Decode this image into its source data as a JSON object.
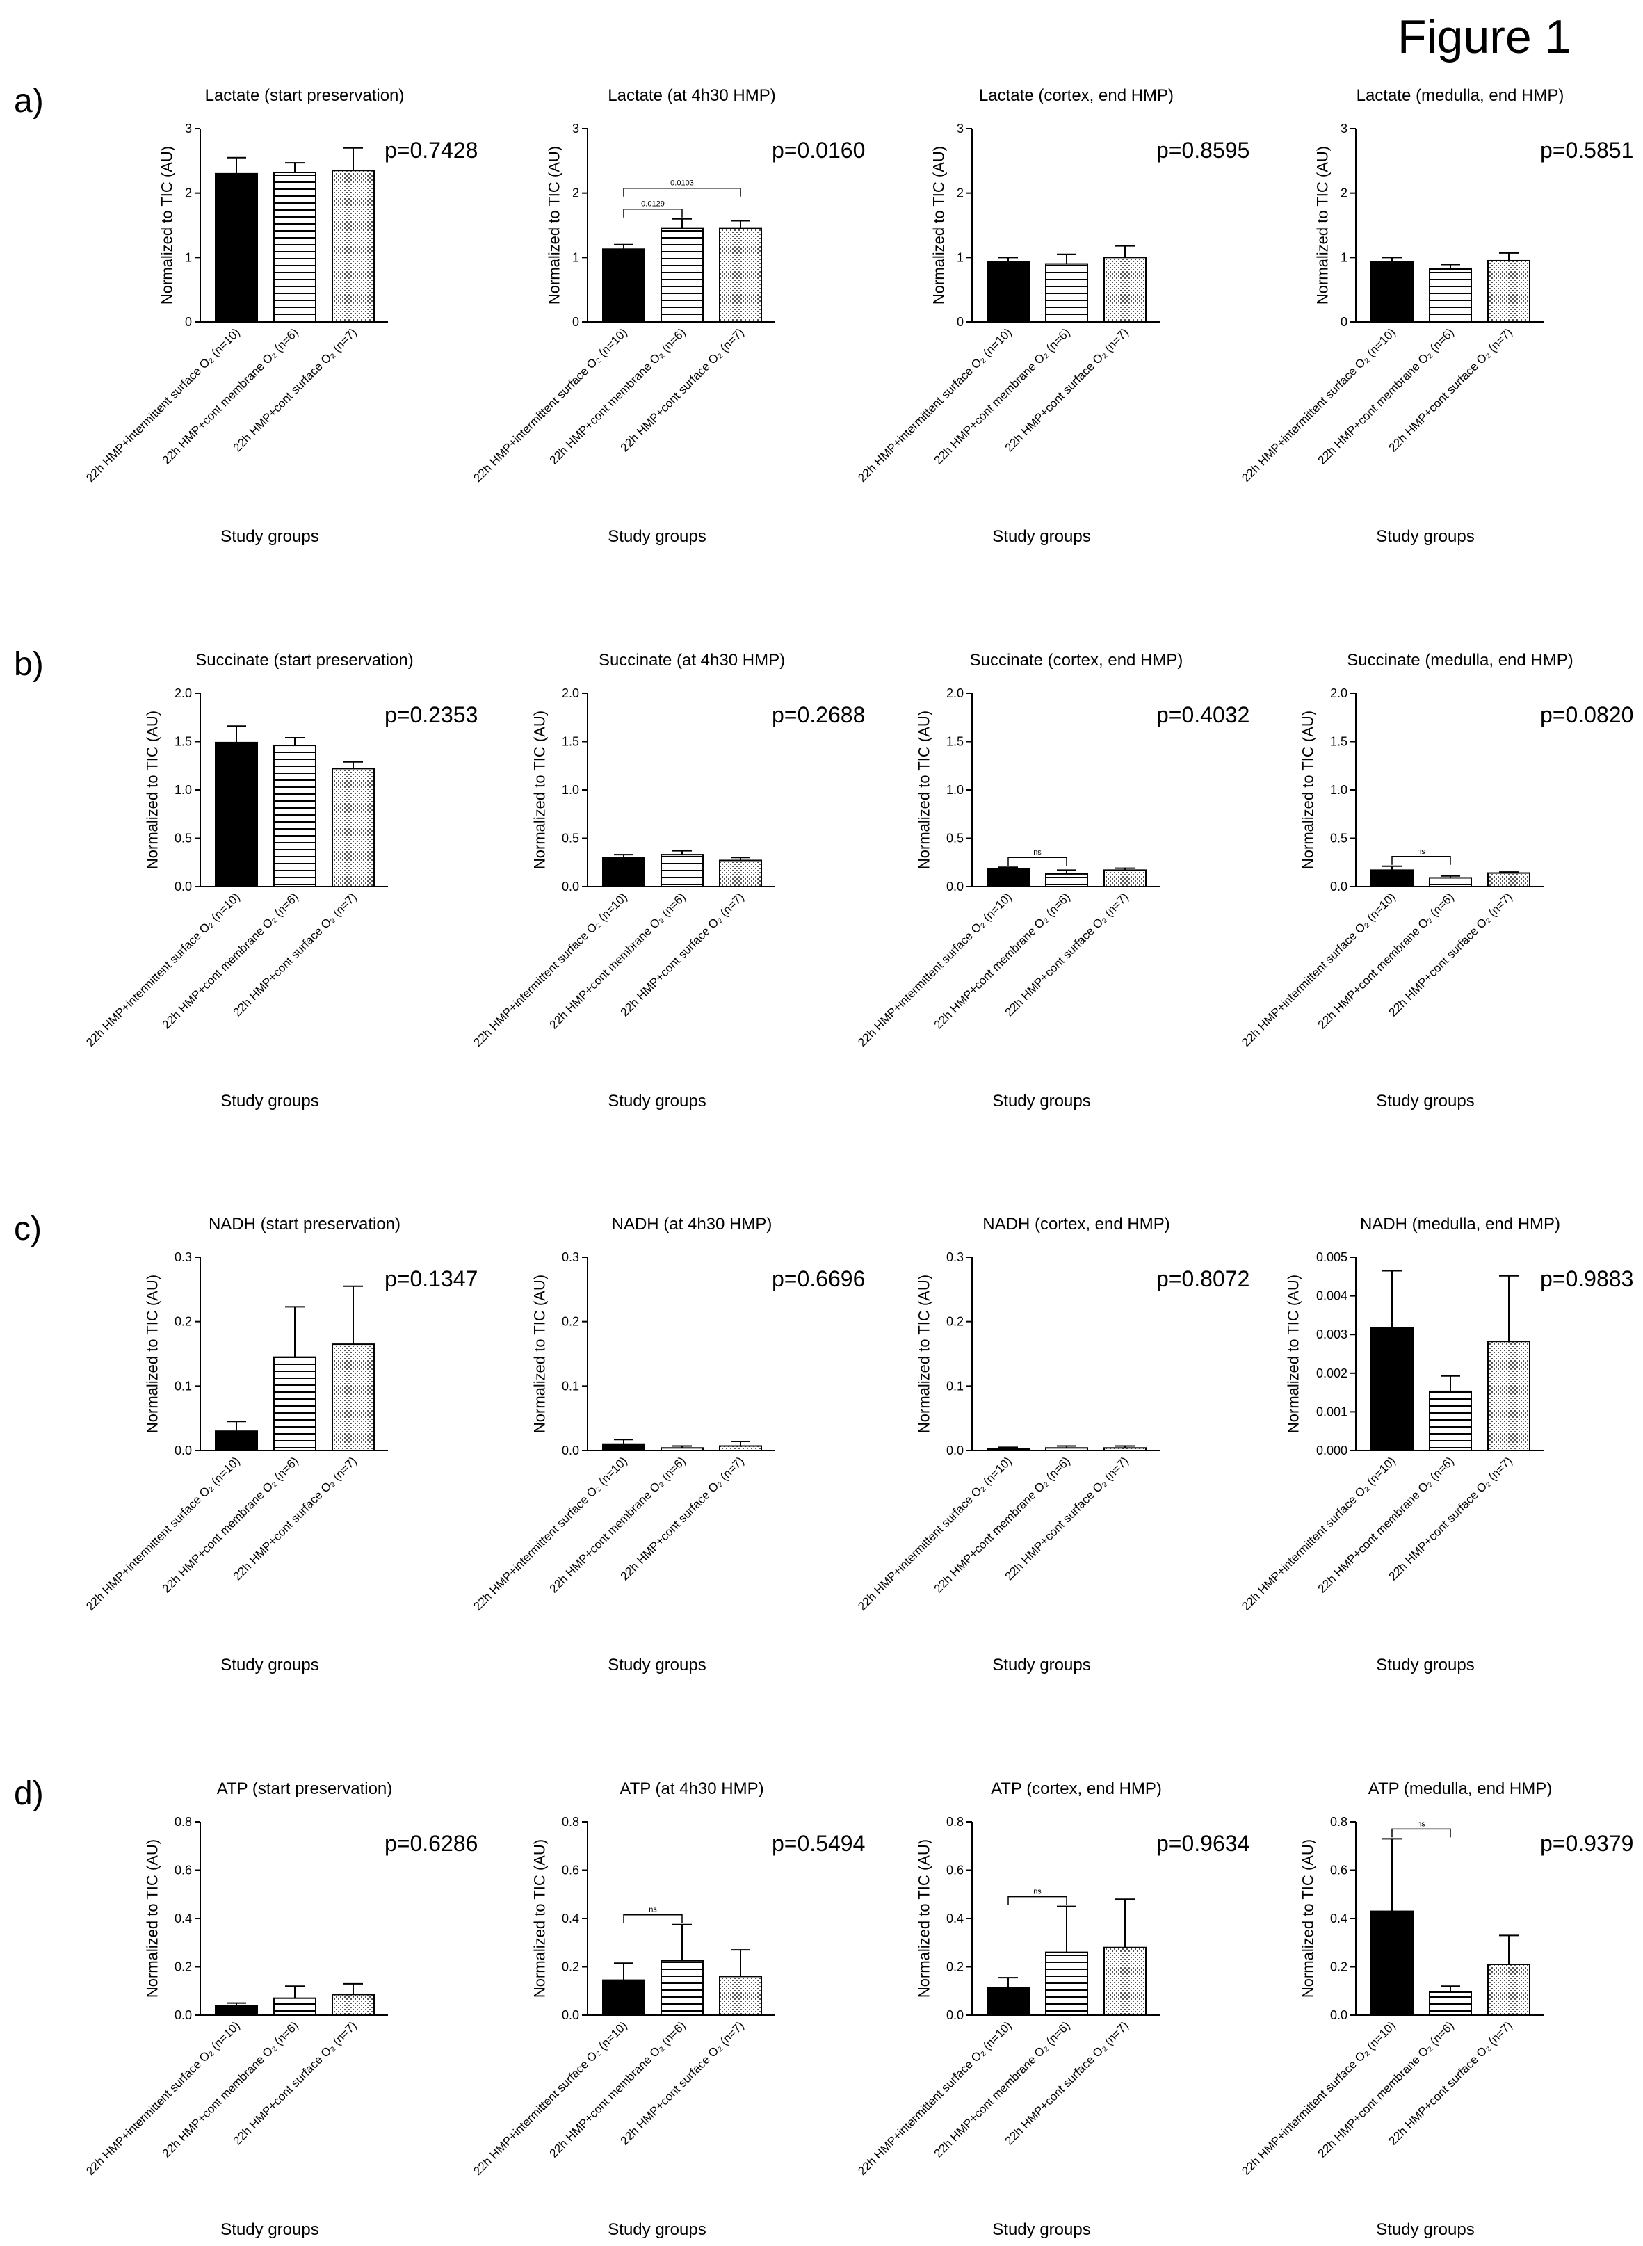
{
  "figure": {
    "title": "Figure 1"
  },
  "rows": [
    {
      "label": "a)"
    },
    {
      "label": "b)"
    },
    {
      "label": "c)"
    },
    {
      "label": "d)"
    }
  ],
  "shared": {
    "ylabel": "Normalized to TIC (AU)",
    "xlabel": "Study groups",
    "categories": [
      "22h HMP+intermittent surface O₂ (n=10)",
      "22h HMP+cont membrane O₂ (n=6)",
      "22h HMP+cont surface O₂ (n=7)"
    ],
    "bar_fills": [
      "solid-black",
      "horizontal-lines",
      "fine-dots"
    ]
  },
  "chart_data": [
    {
      "type": "bar",
      "title": "Lactate (start preservation)",
      "pvalue": "p=0.7428",
      "ylim": [
        0,
        3
      ],
      "yticks": [
        "0",
        "1",
        "2",
        "3"
      ],
      "values": [
        2.3,
        2.32,
        2.35
      ],
      "errors": [
        0.25,
        0.15,
        0.35
      ],
      "brackets": []
    },
    {
      "type": "bar",
      "title": "Lactate (at 4h30 HMP)",
      "pvalue": "p=0.0160",
      "ylim": [
        0,
        3
      ],
      "yticks": [
        "0",
        "1",
        "2",
        "3"
      ],
      "values": [
        1.13,
        1.45,
        1.45
      ],
      "errors": [
        0.07,
        0.15,
        0.12
      ],
      "brackets": [
        {
          "from": 0,
          "to": 1,
          "label": "0.0129"
        },
        {
          "from": 0,
          "to": 2,
          "label": "0.0103"
        }
      ]
    },
    {
      "type": "bar",
      "title": "Lactate (cortex, end HMP)",
      "pvalue": "p=0.8595",
      "ylim": [
        0,
        3
      ],
      "yticks": [
        "0",
        "1",
        "2",
        "3"
      ],
      "values": [
        0.93,
        0.9,
        1.0
      ],
      "errors": [
        0.07,
        0.15,
        0.18
      ],
      "brackets": []
    },
    {
      "type": "bar",
      "title": "Lactate (medulla, end HMP)",
      "pvalue": "p=0.5851",
      "ylim": [
        0,
        3
      ],
      "yticks": [
        "0",
        "1",
        "2",
        "3"
      ],
      "values": [
        0.93,
        0.82,
        0.95
      ],
      "errors": [
        0.07,
        0.07,
        0.12
      ],
      "brackets": []
    },
    {
      "type": "bar",
      "title": "Succinate (start preservation)",
      "pvalue": "p=0.2353",
      "ylim": [
        0,
        2
      ],
      "yticks": [
        "0.0",
        "0.5",
        "1.0",
        "1.5",
        "2.0"
      ],
      "values": [
        1.49,
        1.46,
        1.22
      ],
      "errors": [
        0.17,
        0.08,
        0.07
      ],
      "brackets": []
    },
    {
      "type": "bar",
      "title": "Succinate (at 4h30 HMP)",
      "pvalue": "p=0.2688",
      "ylim": [
        0,
        2
      ],
      "yticks": [
        "0.0",
        "0.5",
        "1.0",
        "1.5",
        "2.0"
      ],
      "values": [
        0.3,
        0.33,
        0.27
      ],
      "errors": [
        0.03,
        0.04,
        0.03
      ],
      "brackets": []
    },
    {
      "type": "bar",
      "title": "Succinate (cortex, end HMP)",
      "pvalue": "p=0.4032",
      "ylim": [
        0,
        2
      ],
      "yticks": [
        "0.0",
        "0.5",
        "1.0",
        "1.5",
        "2.0"
      ],
      "values": [
        0.18,
        0.13,
        0.17
      ],
      "errors": [
        0.02,
        0.04,
        0.02
      ],
      "brackets": [
        {
          "from": 0,
          "to": 1,
          "label": "ns"
        }
      ]
    },
    {
      "type": "bar",
      "title": "Succinate (medulla, end HMP)",
      "pvalue": "p=0.0820",
      "ylim": [
        0,
        2
      ],
      "yticks": [
        "0.0",
        "0.5",
        "1.0",
        "1.5",
        "2.0"
      ],
      "values": [
        0.17,
        0.09,
        0.14
      ],
      "errors": [
        0.04,
        0.02,
        0.01
      ],
      "brackets": [
        {
          "from": 0,
          "to": 1,
          "label": "ns"
        }
      ]
    },
    {
      "type": "bar",
      "title": "NADH (start preservation)",
      "pvalue": "p=0.1347",
      "ylim": [
        0,
        0.3
      ],
      "yticks": [
        "0.0",
        "0.1",
        "0.2",
        "0.3"
      ],
      "values": [
        0.03,
        0.145,
        0.165
      ],
      "errors": [
        0.015,
        0.078,
        0.09
      ],
      "brackets": []
    },
    {
      "type": "bar",
      "title": "NADH (at 4h30 HMP)",
      "pvalue": "p=0.6696",
      "ylim": [
        0,
        0.3
      ],
      "yticks": [
        "0.0",
        "0.1",
        "0.2",
        "0.3"
      ],
      "values": [
        0.01,
        0.004,
        0.007
      ],
      "errors": [
        0.007,
        0.003,
        0.007
      ],
      "brackets": []
    },
    {
      "type": "bar",
      "title": "NADH (cortex, end HMP)",
      "pvalue": "p=0.8072",
      "ylim": [
        0,
        0.3
      ],
      "yticks": [
        "0.0",
        "0.1",
        "0.2",
        "0.3"
      ],
      "values": [
        0.003,
        0.004,
        0.004
      ],
      "errors": [
        0.002,
        0.003,
        0.003
      ],
      "brackets": []
    },
    {
      "type": "bar",
      "title": "NADH (medulla, end HMP)",
      "pvalue": "p=0.9883",
      "ylim": [
        0,
        0.005
      ],
      "yticks": [
        "0.000",
        "0.001",
        "0.002",
        "0.003",
        "0.004",
        "0.005"
      ],
      "values": [
        0.00318,
        0.00153,
        0.00282
      ],
      "errors": [
        0.00147,
        0.0004,
        0.0017
      ],
      "brackets": []
    },
    {
      "type": "bar",
      "title": "ATP (start preservation)",
      "pvalue": "p=0.6286",
      "ylim": [
        0,
        0.8
      ],
      "yticks": [
        "0.0",
        "0.2",
        "0.4",
        "0.6",
        "0.8"
      ],
      "values": [
        0.04,
        0.07,
        0.085
      ],
      "errors": [
        0.01,
        0.05,
        0.045
      ],
      "brackets": []
    },
    {
      "type": "bar",
      "title": "ATP (at 4h30 HMP)",
      "pvalue": "p=0.5494",
      "ylim": [
        0,
        0.8
      ],
      "yticks": [
        "0.0",
        "0.2",
        "0.4",
        "0.6",
        "0.8"
      ],
      "values": [
        0.145,
        0.225,
        0.16
      ],
      "errors": [
        0.07,
        0.15,
        0.11
      ],
      "brackets": [
        {
          "from": 0,
          "to": 1,
          "label": "ns"
        }
      ]
    },
    {
      "type": "bar",
      "title": "ATP (cortex, end HMP)",
      "pvalue": "p=0.9634",
      "ylim": [
        0,
        0.8
      ],
      "yticks": [
        "0.0",
        "0.2",
        "0.4",
        "0.6",
        "0.8"
      ],
      "values": [
        0.115,
        0.26,
        0.28
      ],
      "errors": [
        0.04,
        0.19,
        0.2
      ],
      "brackets": [
        {
          "from": 0,
          "to": 1,
          "label": "ns"
        }
      ]
    },
    {
      "type": "bar",
      "title": "ATP (medulla, end HMP)",
      "pvalue": "p=0.9379",
      "ylim": [
        0,
        0.8
      ],
      "yticks": [
        "0.0",
        "0.2",
        "0.4",
        "0.6",
        "0.8"
      ],
      "values": [
        0.43,
        0.095,
        0.21
      ],
      "errors": [
        0.3,
        0.025,
        0.12
      ],
      "brackets": [
        {
          "from": 0,
          "to": 1,
          "label": "ns"
        }
      ]
    }
  ]
}
